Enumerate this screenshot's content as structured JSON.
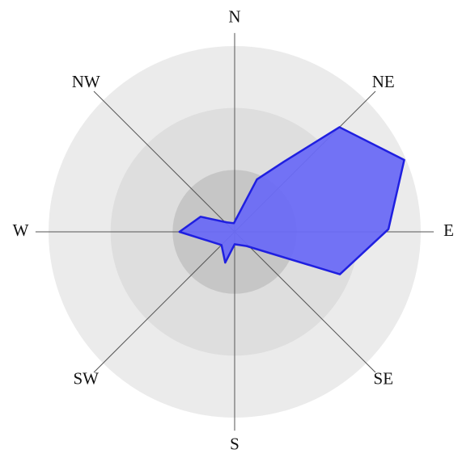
{
  "chart_data": {
    "type": "polar_area",
    "categories": [
      "N",
      "NE",
      "E",
      "SE",
      "S",
      "SW",
      "W",
      "NW"
    ],
    "rlim": [
      0,
      3
    ],
    "rticks": [
      1,
      2,
      3
    ],
    "ring_colors": [
      "#c6c6c6",
      "#dedede",
      "#ebebeb"
    ],
    "series": [
      {
        "color": "#6b6bf5",
        "edge_color": "#1f1fe0",
        "theta": [
          355,
          23,
          35,
          45,
          67,
          89,
          112,
          140,
          180,
          197,
          225,
          270,
          294,
          320
        ],
        "r": [
          0.14,
          0.92,
          1.38,
          2.39,
          2.97,
          2.48,
          1.83,
          0.3,
          0.2,
          0.52,
          0.3,
          0.89,
          0.6,
          0.2
        ]
      }
    ]
  }
}
